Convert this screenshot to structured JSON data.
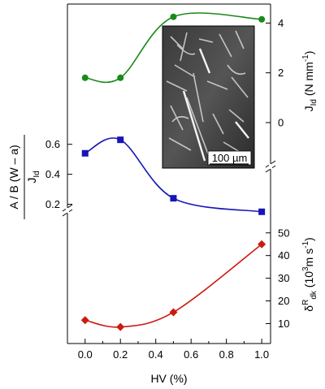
{
  "chart_data": {
    "type": "line",
    "x": [
      0.0,
      0.2,
      0.5,
      1.0
    ],
    "xlabel": "HV (%)",
    "xlim": [
      -0.1,
      1.05
    ],
    "xticks": [
      "0.0",
      "0.2",
      "0.4",
      "0.6",
      "0.8",
      "1.0"
    ],
    "xtick_values": [
      0.0,
      0.2,
      0.4,
      0.6,
      0.8,
      1.0
    ],
    "series": [
      {
        "key": "jid",
        "values": [
          1.8,
          1.8,
          4.25,
          4.15
        ],
        "color": "#1a8a1a",
        "marker": "circle",
        "axis_side": "right",
        "ylim": [
          -1.6,
          4.6
        ],
        "yticks": [
          "0",
          "2",
          "4"
        ],
        "ytick_values": [
          0,
          2,
          4
        ],
        "ylabel_main": "J",
        "ylabel_sub": "Id",
        "ylabel_rest": " (N mm",
        "ylabel_sup": "-1",
        "ylabel_end": ")"
      },
      {
        "key": "ratio",
        "values": [
          0.54,
          0.63,
          0.24,
          0.15
        ],
        "color": "#1515b8",
        "marker": "square",
        "axis_side": "left",
        "ylim": [
          0.1,
          0.75
        ],
        "yticks": [
          "0.2",
          "0.4",
          "0.6"
        ],
        "ytick_values": [
          0.2,
          0.4,
          0.6
        ],
        "ylabel_top": "A / B (W – a)",
        "ylabel_bottom_main": "J",
        "ylabel_bottom_sub": "Id"
      },
      {
        "key": "rate",
        "values": [
          11.5,
          8.5,
          15,
          45
        ],
        "color": "#cc1a10",
        "marker": "diamond",
        "axis_side": "right",
        "ylim": [
          3,
          56
        ],
        "yticks": [
          "10",
          "20",
          "30",
          "40",
          "50"
        ],
        "ytick_values": [
          10,
          20,
          30,
          40,
          50
        ],
        "ylabel_main": "δ",
        "ylabel_sup": "R",
        "ylabel_sub": "dk",
        "ylabel_rest": " (10",
        "ylabel_sup2": "3",
        "ylabel_rest2": "m s",
        "ylabel_sup3": "-1",
        "ylabel_end": ")"
      }
    ]
  },
  "inset": {
    "scale_bar_label": "100 µm"
  }
}
